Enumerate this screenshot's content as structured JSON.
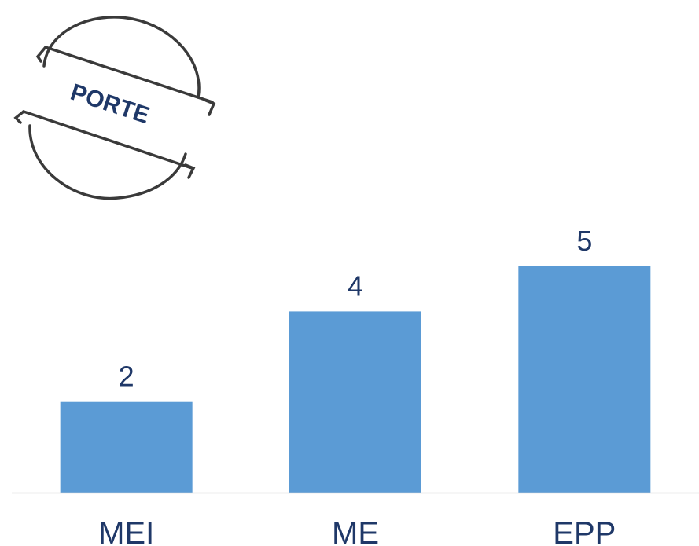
{
  "stamp": {
    "text": "PORTE",
    "ink_color": "#3a3a3a",
    "text_color": "#1f3868"
  },
  "chart_data": {
    "type": "bar",
    "categories": [
      "MEI",
      "ME",
      "EPP"
    ],
    "values": [
      2,
      4,
      5
    ],
    "title": "",
    "xlabel": "",
    "ylabel": "",
    "ylim": [
      0,
      5.1
    ],
    "grid": false,
    "legend": "none",
    "data_labels": true,
    "colors": {
      "bar": "#5b9bd5",
      "label": "#1f3868",
      "axis": "#d9d9d9"
    }
  }
}
